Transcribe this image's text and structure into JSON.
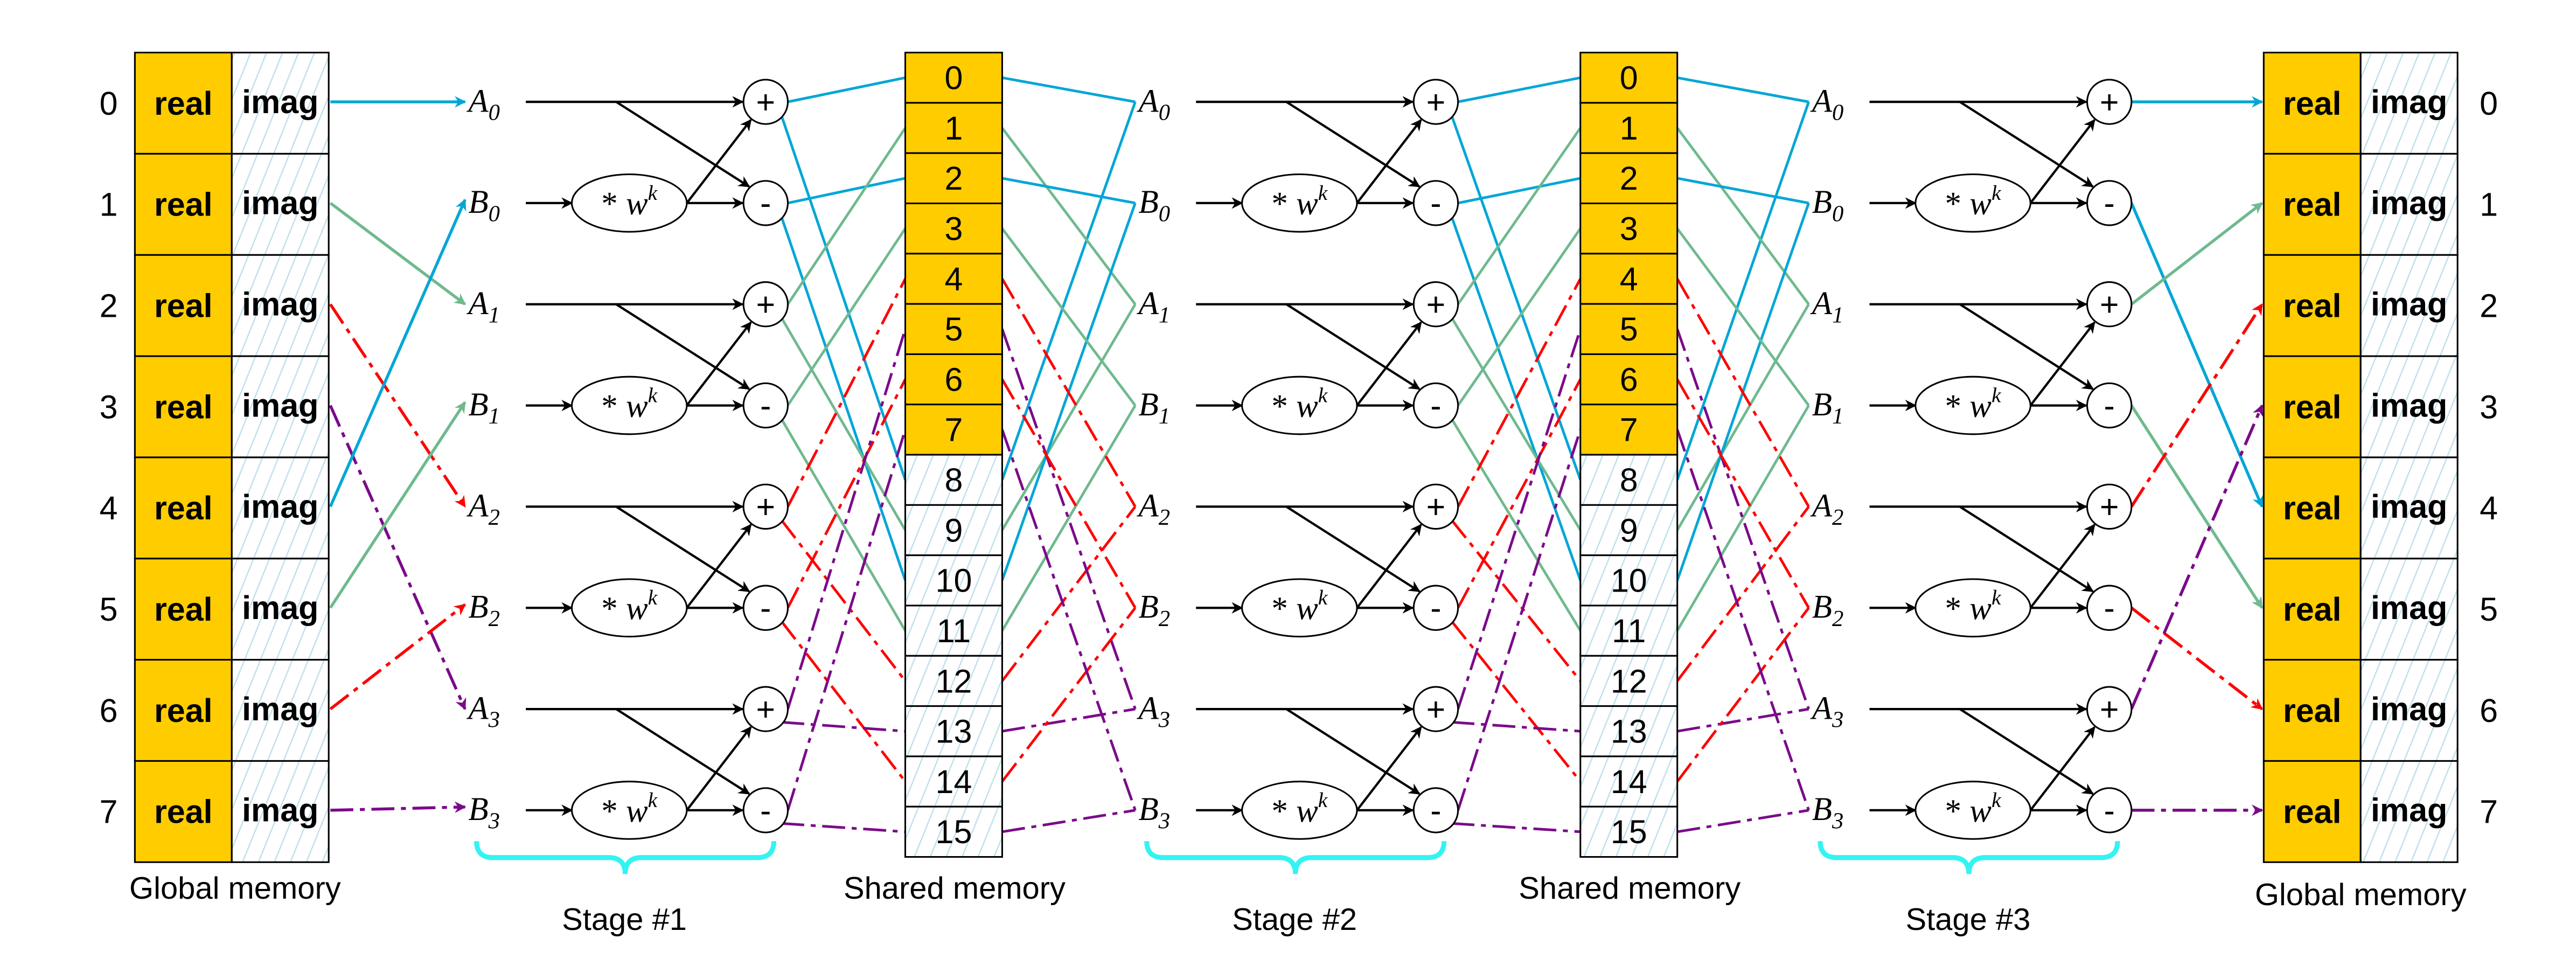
{
  "captions": {
    "global_left": "Global memory",
    "shared_1": "Shared memory",
    "shared_2": "Shared memory",
    "global_right": "Global memory",
    "stage_1": "Stage #1",
    "stage_2": "Stage #2",
    "stage_3": "Stage #3"
  },
  "global_memory": {
    "indices": [
      "0",
      "1",
      "2",
      "3",
      "4",
      "5",
      "6",
      "7"
    ],
    "real_label": "real",
    "imag_label": "imag"
  },
  "shared_memory": {
    "indices": [
      "0",
      "1",
      "2",
      "3",
      "4",
      "5",
      "6",
      "7",
      "8",
      "9",
      "10",
      "11",
      "12",
      "13",
      "14",
      "15"
    ]
  },
  "butterfly_inputs": [
    {
      "letter": "A",
      "sub": "0"
    },
    {
      "letter": "B",
      "sub": "0"
    },
    {
      "letter": "A",
      "sub": "1"
    },
    {
      "letter": "B",
      "sub": "1"
    },
    {
      "letter": "A",
      "sub": "2"
    },
    {
      "letter": "B",
      "sub": "2"
    },
    {
      "letter": "A",
      "sub": "3"
    },
    {
      "letter": "B",
      "sub": "3"
    }
  ],
  "twiddle": {
    "op": "*",
    "base": "w",
    "sup": "k"
  },
  "adder_ops": [
    "+",
    "-"
  ],
  "colors": {
    "real_fill": "#ffcc00",
    "hatch": "#bfe0ec",
    "pair_0": "#00a6d6",
    "pair_1": "#6fb98f",
    "pair_2": "#ff0000",
    "pair_3": "#7b0a8a",
    "brace": "#33f3f3"
  },
  "wiring": {
    "global_to_stage1": [
      0,
      2,
      4,
      6,
      1,
      3,
      5,
      7
    ],
    "stage_to_shared_plus": [
      0,
      1,
      4,
      5
    ],
    "stage_to_shared_minus": [
      2,
      3,
      6,
      7
    ],
    "shared_to_stage_rows": [
      0,
      2,
      1,
      3,
      4,
      6,
      5,
      7
    ],
    "stage3_to_global_plus": [
      0,
      1,
      2,
      3
    ],
    "stage3_to_global_minus": [
      4,
      5,
      6,
      7
    ]
  }
}
